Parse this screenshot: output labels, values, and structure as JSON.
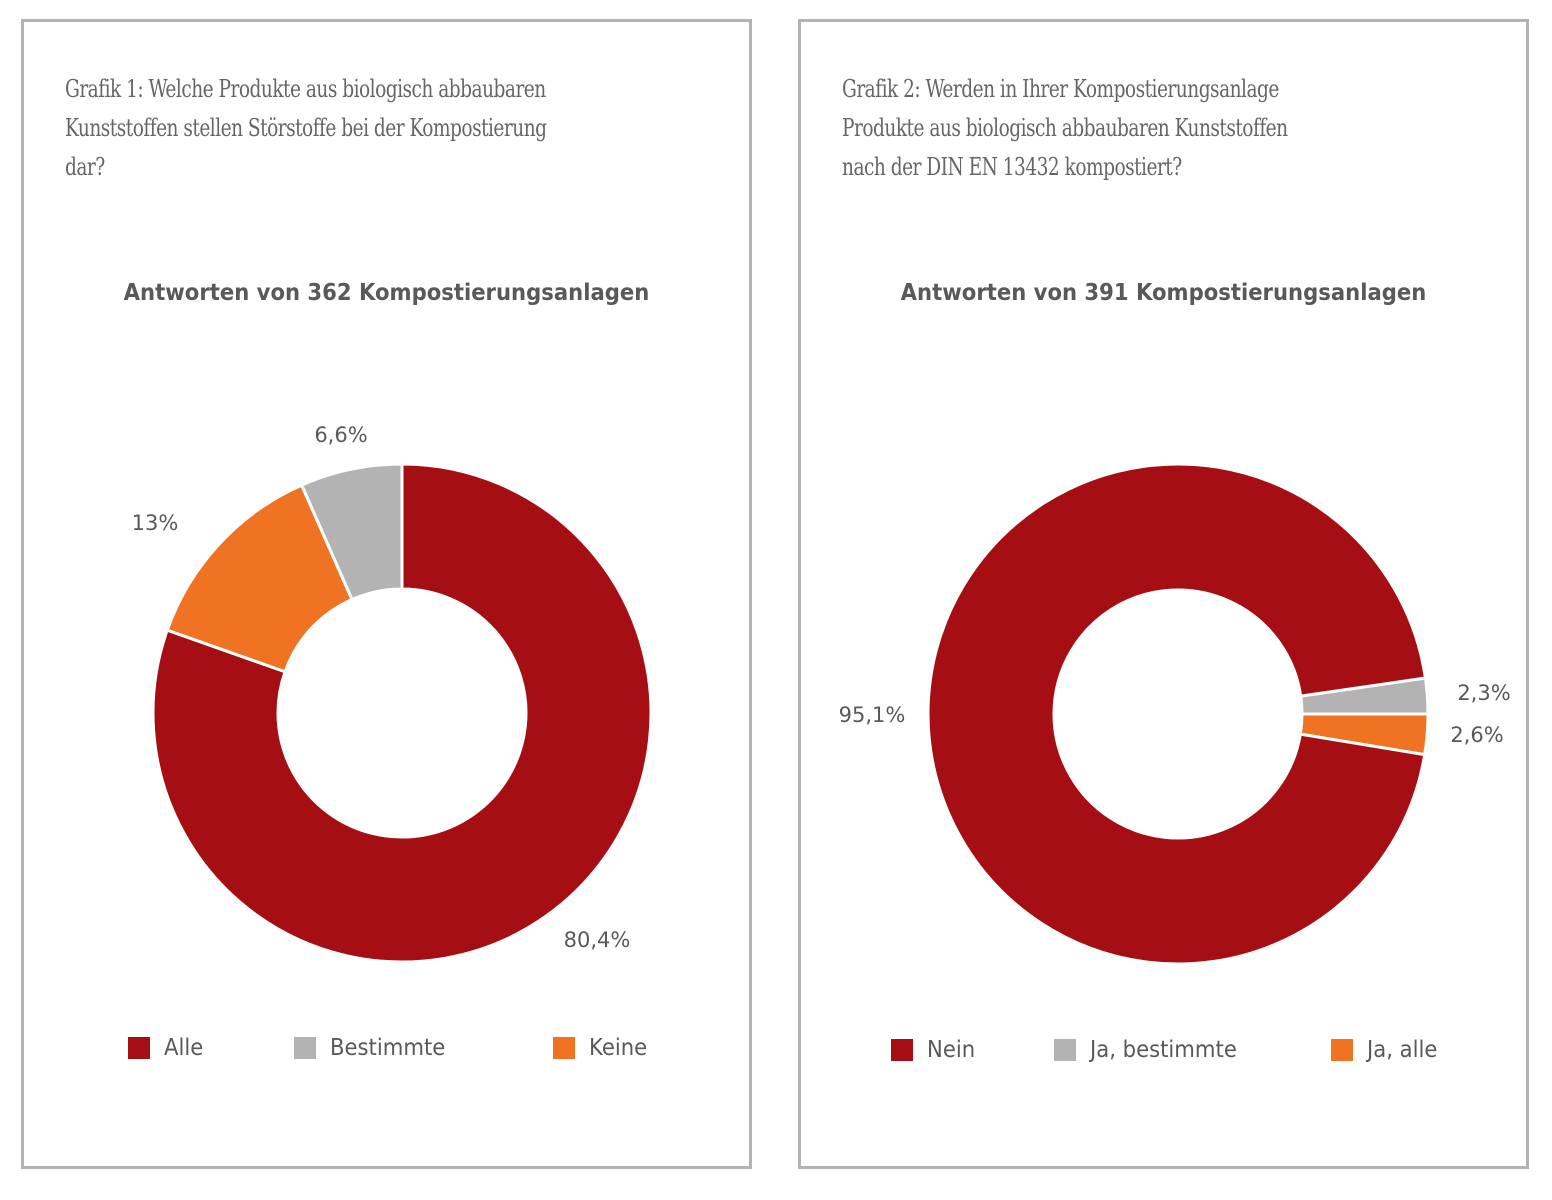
{
  "chart_data": [
    {
      "type": "pie",
      "variant": "donut",
      "title": "Grafik 1: Welche Produkte aus biologisch abbaubaren Kunststoffen stellen Störstoffe bei der Kompostierung dar?",
      "subtitle": "Antworten von 362 Kompostierungsanlagen",
      "categories": [
        "Alle",
        "Bestimmte",
        "Keine"
      ],
      "values": [
        80.4,
        6.6,
        13.0
      ],
      "order_clockwise_from_top": [
        "Alle",
        "Keine",
        "Bestimmte"
      ],
      "labels": [
        "80,4%",
        "6,6%",
        "13%"
      ],
      "colors": [
        "#a50f14",
        "#b3b3b3",
        "#f07323"
      ],
      "legend": [
        "Alle",
        "Bestimmte",
        "Keine"
      ],
      "legend_position": "bottom",
      "unit": "%"
    },
    {
      "type": "pie",
      "variant": "donut",
      "title": "Grafik 2: Werden in Ihrer Kompostierungsanlage Produkte aus biologisch abbaubaren Kunststoffen nach der DIN EN 13432 kompostiert?",
      "subtitle": "Antworten von 391 Kompostierungsanlagen",
      "categories": [
        "Nein",
        "Ja, bestimmte",
        "Ja, alle"
      ],
      "values": [
        95.1,
        2.3,
        2.6
      ],
      "labels": [
        "95,1%",
        "2,3%",
        "2,6%"
      ],
      "colors": [
        "#a50f14",
        "#b3b3b3",
        "#f07323"
      ],
      "legend": [
        "Nein",
        "Ja, bestimmte",
        "Ja, alle"
      ],
      "legend_position": "bottom",
      "unit": "%"
    }
  ],
  "panels": [
    {
      "question_lines": [
        "Grafik 1: Welche Produkte aus biologisch abbaubaren",
        "Kunststoffen stellen Störstoffe bei der Kompostierung",
        "dar?"
      ],
      "subtitle": "Antworten von 362 Kompostierungsanlagen",
      "legend": [
        {
          "label": "Alle",
          "color": "#a50f14"
        },
        {
          "label": "Bestimmte",
          "color": "#b3b3b3"
        },
        {
          "label": "Keine",
          "color": "#f07323"
        }
      ]
    },
    {
      "question_lines": [
        "Grafik 2: Werden in Ihrer Kompostierungsanlage",
        "Produkte aus biologisch abbaubaren Kunststoffen",
        "nach der DIN EN 13432 kompostiert?"
      ],
      "subtitle": "Antworten von 391 Kompostierungsanlagen",
      "legend": [
        {
          "label": "Nein",
          "color": "#a50f14"
        },
        {
          "label": "Ja, bestimmte",
          "color": "#b3b3b3"
        },
        {
          "label": "Ja, alle",
          "color": "#f07323"
        }
      ]
    }
  ]
}
